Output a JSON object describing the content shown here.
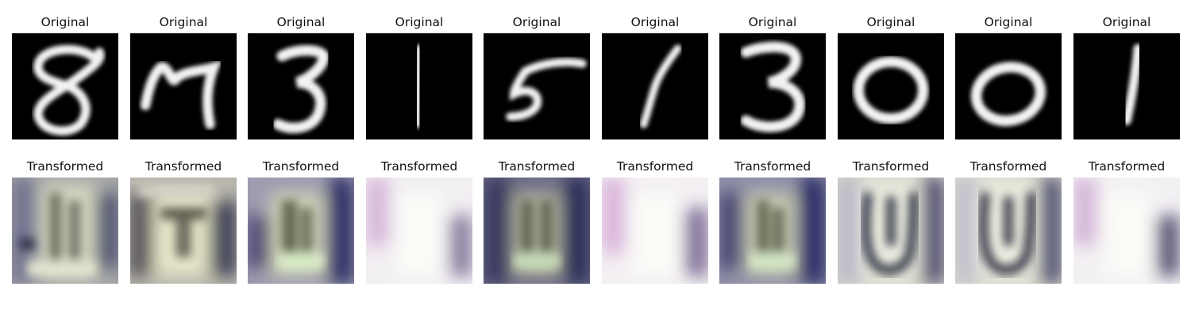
{
  "rows": [
    {
      "title": "Original",
      "images": [
        {
          "depicts": "digit 8"
        },
        {
          "depicts": "digit 7"
        },
        {
          "depicts": "digit 3"
        },
        {
          "depicts": "digit 1"
        },
        {
          "depicts": "digit 5"
        },
        {
          "depicts": "digit 1"
        },
        {
          "depicts": "digit 3"
        },
        {
          "depicts": "digit 0"
        },
        {
          "depicts": "digit 0"
        },
        {
          "depicts": "digit 1"
        }
      ]
    },
    {
      "title": "Transformed",
      "images": [
        {
          "depicts": "noisy transformed image"
        },
        {
          "depicts": "noisy transformed image"
        },
        {
          "depicts": "noisy transformed image"
        },
        {
          "depicts": "faint pale transformed image"
        },
        {
          "depicts": "noisy transformed image"
        },
        {
          "depicts": "faint pale transformed image"
        },
        {
          "depicts": "noisy transformed image"
        },
        {
          "depicts": "U-shaped transformed image"
        },
        {
          "depicts": "U-shaped transformed image"
        },
        {
          "depicts": "faint pale transformed image"
        }
      ]
    }
  ],
  "colors": {
    "original_bg": "#000000",
    "digit_stroke": "#f2f2f2",
    "transformed_light": "#f4f2ec",
    "transformed_dark": "#2a2a52",
    "transformed_violet": "#b98ac4",
    "transformed_olive": "#c8cba0"
  }
}
